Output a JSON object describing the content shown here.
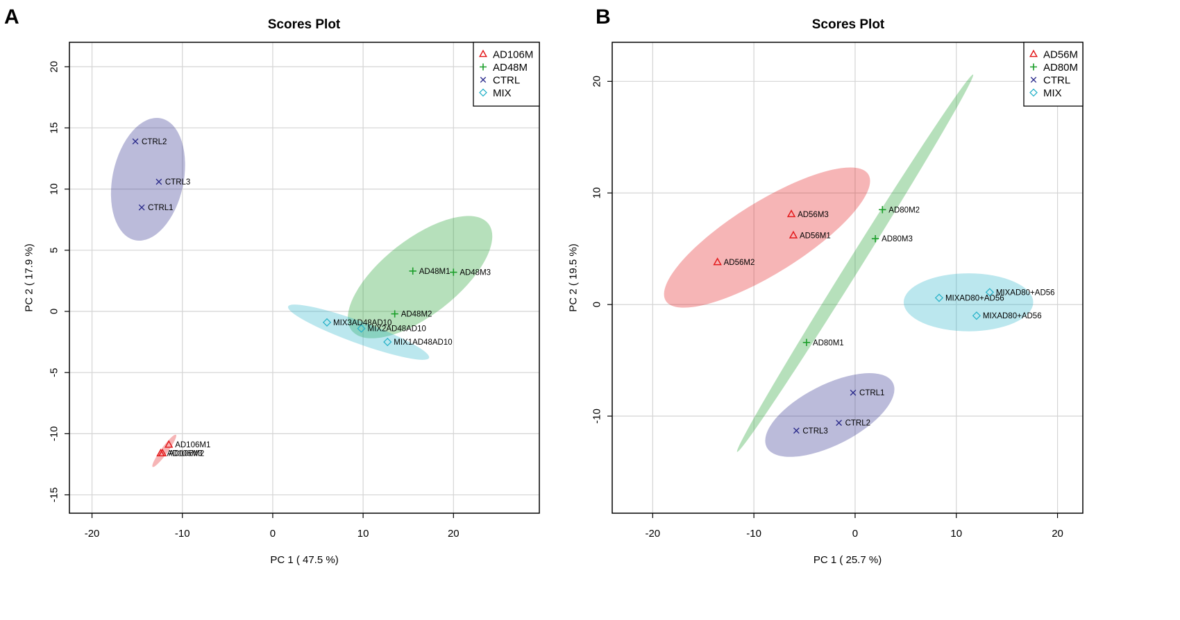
{
  "colors": {
    "red": "#e31a1c",
    "green": "#1b9e2a",
    "blue": "#2c2c8c",
    "cyan": "#2ab3c9"
  },
  "chart_data": [
    {
      "type": "scatter",
      "panel_label": "A",
      "title": "Scores Plot",
      "xlabel": "PC 1 ( 47.5 %)",
      "ylabel": "PC 2 ( 17.9 %)",
      "xlim": [
        -22.5,
        29.5
      ],
      "ylim": [
        -16.5,
        22
      ],
      "xticks": [
        -20,
        -10,
        0,
        10,
        20
      ],
      "yticks": [
        -15,
        -10,
        -5,
        0,
        5,
        10,
        15,
        20
      ],
      "grid": true,
      "legend_position": "top-right",
      "series": [
        {
          "name": "AD106M",
          "marker": "triangle",
          "color": "#e31a1c",
          "points": [
            {
              "x": -11.5,
              "y": -10.9,
              "label": "AD106M1"
            },
            {
              "x": -12.2,
              "y": -11.6,
              "label": "AD106M2"
            },
            {
              "x": -12.4,
              "y": -11.6,
              "label": "AD106M3"
            }
          ],
          "ellipse": {
            "cx": -12.0,
            "cy": -11.4,
            "rx": 2.2,
            "ry": 0.28,
            "angle": 54
          }
        },
        {
          "name": "AD48M",
          "marker": "plus",
          "color": "#1b9e2a",
          "points": [
            {
              "x": 15.5,
              "y": 3.3,
              "label": "AD48M1"
            },
            {
              "x": 13.5,
              "y": -0.2,
              "label": "AD48M2"
            },
            {
              "x": 20.0,
              "y": 3.2,
              "label": "AD48M3"
            }
          ],
          "ellipse": {
            "cx": 16.3,
            "cy": 2.8,
            "rx": 9.6,
            "ry": 3.1,
            "angle": 38
          }
        },
        {
          "name": "CTRL",
          "marker": "cross",
          "color": "#2c2c8c",
          "points": [
            {
              "x": -14.5,
              "y": 8.5,
              "label": "CTRL1"
            },
            {
              "x": -15.2,
              "y": 13.9,
              "label": "CTRL2"
            },
            {
              "x": -12.6,
              "y": 10.6,
              "label": "CTRL3"
            }
          ],
          "ellipse": {
            "cx": -13.8,
            "cy": 10.8,
            "rx": 6.9,
            "ry": 2.9,
            "angle": 78
          }
        },
        {
          "name": "MIX",
          "marker": "diamond",
          "color": "#2ab3c9",
          "points": [
            {
              "x": 12.7,
              "y": -2.5,
              "label": "MIX1AD48AD10"
            },
            {
              "x": 9.8,
              "y": -1.4,
              "label": "MIX2AD48AD10"
            },
            {
              "x": 6.0,
              "y": -0.9,
              "label": "MIX3AD48AD10"
            }
          ],
          "ellipse": {
            "cx": 9.5,
            "cy": -1.7,
            "rx": 8.3,
            "ry": 0.9,
            "angle": -20
          }
        }
      ]
    },
    {
      "type": "scatter",
      "panel_label": "B",
      "title": "Scores Plot",
      "xlabel": "PC 1 ( 25.7 %)",
      "ylabel": "PC 2 ( 19.5 %)",
      "xlim": [
        -24,
        22.5
      ],
      "ylim": [
        -18.7,
        23.5
      ],
      "xticks": [
        -20,
        -10,
        0,
        10,
        20
      ],
      "yticks": [
        -10,
        0,
        10,
        20
      ],
      "grid": true,
      "legend_position": "top-right",
      "series": [
        {
          "name": "AD56M",
          "marker": "triangle",
          "color": "#e31a1c",
          "points": [
            {
              "x": -6.1,
              "y": 6.2,
              "label": "AD56M1"
            },
            {
              "x": -13.6,
              "y": 3.8,
              "label": "AD56M2"
            },
            {
              "x": -6.3,
              "y": 8.1,
              "label": "AD56M3"
            }
          ],
          "ellipse": {
            "cx": -8.7,
            "cy": 6.0,
            "rx": 11.8,
            "ry": 3.2,
            "angle": 32
          }
        },
        {
          "name": "AD80M",
          "marker": "plus",
          "color": "#1b9e2a",
          "points": [
            {
              "x": -4.8,
              "y": -3.4,
              "label": "AD80M1"
            },
            {
              "x": 2.7,
              "y": 8.5,
              "label": "AD80M2"
            },
            {
              "x": 2.0,
              "y": 5.9,
              "label": "AD80M3"
            }
          ],
          "ellipse": {
            "cx": 0.0,
            "cy": 3.7,
            "rx": 22.0,
            "ry": 0.6,
            "angle": 58
          }
        },
        {
          "name": "CTRL",
          "marker": "cross",
          "color": "#2c2c8c",
          "points": [
            {
              "x": -0.2,
              "y": -7.9,
              "label": "CTRL1"
            },
            {
              "x": -1.6,
              "y": -10.6,
              "label": "CTRL2"
            },
            {
              "x": -5.8,
              "y": -11.3,
              "label": "CTRL3"
            }
          ],
          "ellipse": {
            "cx": -2.5,
            "cy": -9.9,
            "rx": 7.0,
            "ry": 2.7,
            "angle": 27
          }
        },
        {
          "name": "MIX",
          "marker": "diamond",
          "color": "#2ab3c9",
          "points": [
            {
              "x": 8.3,
              "y": 0.6,
              "label": "MIXAD80+AD56"
            },
            {
              "x": 12.0,
              "y": -1.0,
              "label": "MIXAD80+AD56"
            },
            {
              "x": 13.3,
              "y": 1.1,
              "label": "MIXAD80+AD56"
            }
          ],
          "ellipse": {
            "cx": 11.2,
            "cy": 0.2,
            "rx": 6.4,
            "ry": 2.6,
            "angle": 0
          }
        }
      ]
    }
  ]
}
